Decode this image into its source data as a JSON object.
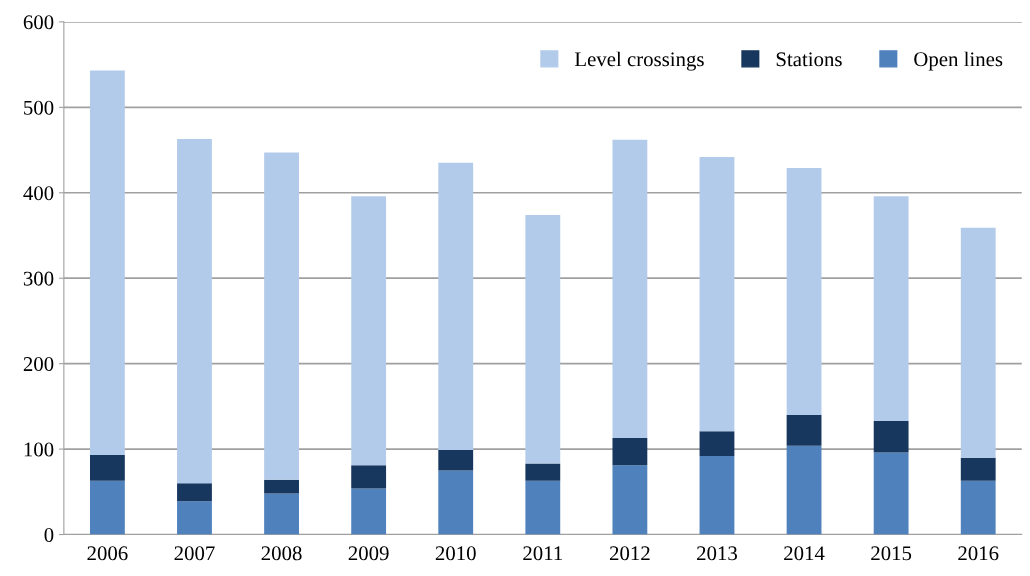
{
  "chart_data": {
    "type": "bar",
    "stacked": true,
    "categories": [
      "2006",
      "2007",
      "2008",
      "2009",
      "2010",
      "2011",
      "2012",
      "2013",
      "2014",
      "2015",
      "2016"
    ],
    "series": [
      {
        "name": "Open lines",
        "color": "#4f81bd",
        "values": [
          63,
          39,
          48,
          54,
          75,
          63,
          81,
          92,
          104,
          96,
          63
        ]
      },
      {
        "name": "Stations",
        "color": "#17375e",
        "values": [
          30,
          21,
          16,
          27,
          24,
          20,
          32,
          29,
          36,
          37,
          27
        ]
      },
      {
        "name": "Level crossings",
        "color": "#b3cbea",
        "values": [
          450,
          403,
          383,
          315,
          336,
          291,
          349,
          321,
          289,
          263,
          269
        ]
      }
    ],
    "ylim": [
      0,
      600
    ],
    "yticks": [
      0,
      100,
      200,
      300,
      400,
      500,
      600
    ],
    "grid": "y",
    "legend": "top right"
  }
}
